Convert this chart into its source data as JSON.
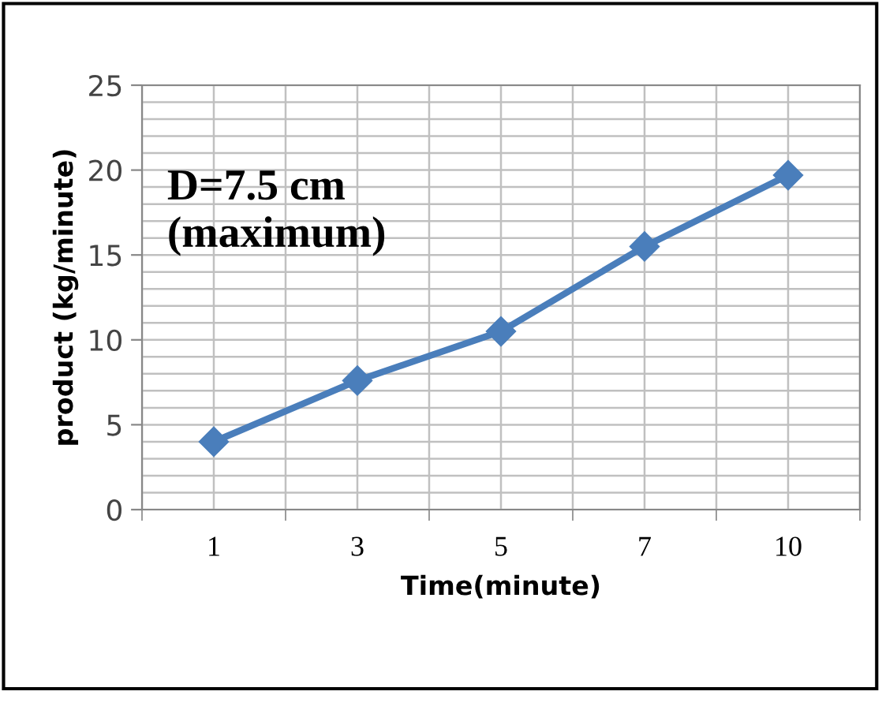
{
  "chart_data": {
    "type": "line",
    "xlabel": "Time(minute)",
    "ylabel": "product (kg/minute)",
    "categories": [
      "1",
      "3",
      "5",
      "7",
      "10"
    ],
    "series": [
      {
        "color": "#4a7ebb",
        "values": [
          4.0,
          7.6,
          10.5,
          15.5,
          19.7
        ]
      }
    ],
    "ylim": [
      0,
      25
    ],
    "yticks": [
      0,
      5,
      10,
      15,
      20,
      25
    ],
    "grid": true,
    "marker": "diamond",
    "line_style": "solid",
    "annotations": [
      "D=7.5 cm\n(maximum)"
    ]
  }
}
